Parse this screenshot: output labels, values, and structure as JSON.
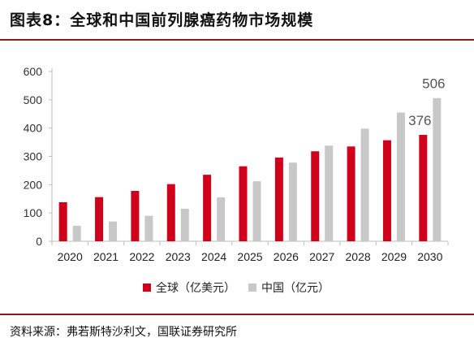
{
  "figure": {
    "title": "图表8：全球和中国前列腺癌药物市场规模",
    "source": "资料来源：弗若斯特沙利文，国联证券研究所"
  },
  "chart_data": {
    "type": "bar",
    "categories": [
      "2020",
      "2021",
      "2022",
      "2023",
      "2024",
      "2025",
      "2026",
      "2027",
      "2028",
      "2029",
      "2030"
    ],
    "series": [
      {
        "name": "全球（亿美元）",
        "color": "#d0021b",
        "values": [
          138,
          156,
          178,
          202,
          235,
          265,
          296,
          318,
          335,
          357,
          376
        ]
      },
      {
        "name": "中国（亿元）",
        "color": "#c8c8c8",
        "values": [
          55,
          70,
          90,
          115,
          155,
          212,
          278,
          338,
          398,
          455,
          506
        ]
      }
    ],
    "ylim": [
      0,
      600
    ],
    "yticks": [
      0,
      100,
      200,
      300,
      400,
      500,
      600
    ],
    "annotations": [
      {
        "series": 0,
        "index": 10,
        "text": "376"
      },
      {
        "series": 1,
        "index": 10,
        "text": "506"
      }
    ],
    "grid": false,
    "legend": "bottom"
  }
}
